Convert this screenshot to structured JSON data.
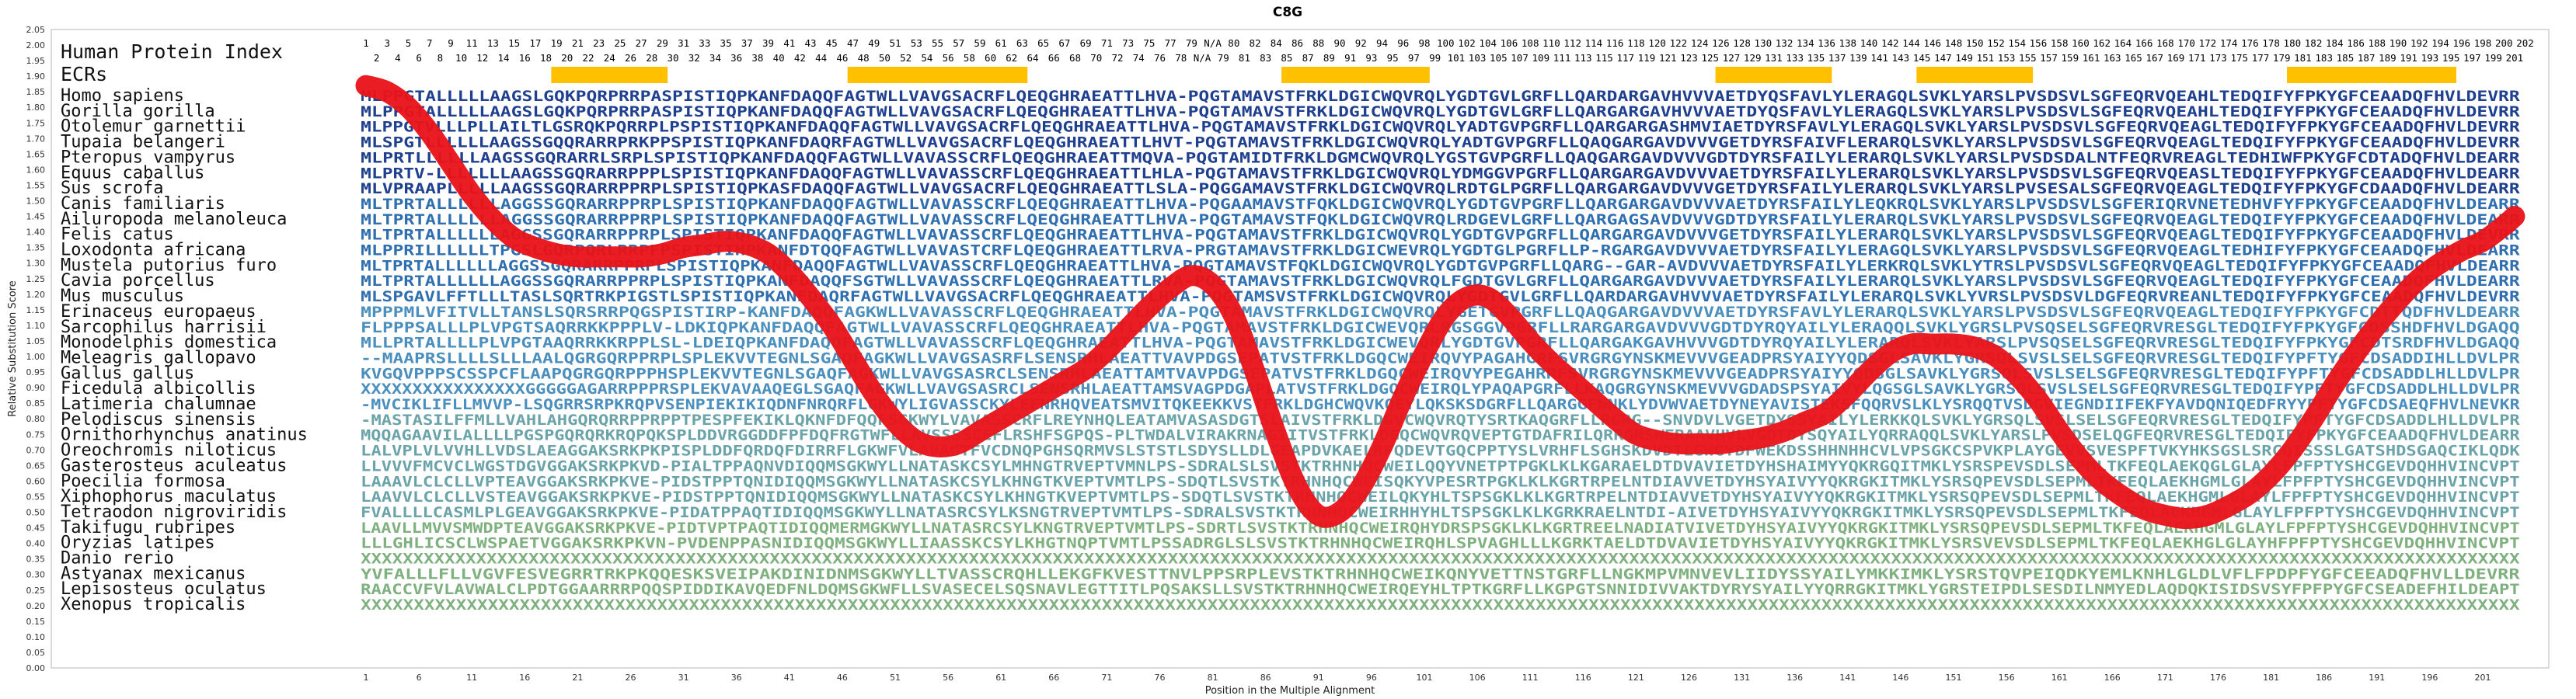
{
  "chart_data": {
    "type": "line",
    "title": "C8G",
    "xlabel": "Position in the Multiple Alignment",
    "ylabel": "Relative Substitution Score",
    "ylim": [
      0,
      2.05
    ],
    "xlim": [
      1,
      204
    ],
    "y_ticks": [
      "0.00",
      "0.05",
      "0.10",
      "0.15",
      "0.20",
      "0.25",
      "0.30",
      "0.35",
      "0.40",
      "0.45",
      "0.50",
      "0.55",
      "0.60",
      "0.65",
      "0.70",
      "0.75",
      "0.80",
      "0.85",
      "0.90",
      "0.95",
      "1.00",
      "1.05",
      "1.10",
      "1.15",
      "1.20",
      "1.25",
      "1.30",
      "1.35",
      "1.40",
      "1.45",
      "1.50",
      "1.55",
      "1.60",
      "1.65",
      "1.70",
      "1.75",
      "1.80",
      "1.85",
      "1.90",
      "1.95",
      "2.00",
      "2.05"
    ],
    "x_ticks": [
      1,
      6,
      11,
      16,
      21,
      26,
      31,
      36,
      41,
      46,
      51,
      56,
      61,
      66,
      71,
      76,
      81,
      86,
      91,
      96,
      101,
      106,
      111,
      116,
      121,
      126,
      131,
      136,
      141,
      146,
      151,
      156,
      161,
      166,
      171,
      176,
      181,
      186,
      191,
      196,
      201
    ],
    "human_index_label": "Human Protein Index",
    "human_index_top": [
      "1",
      "3",
      "5",
      "7",
      "9",
      "11",
      "13",
      "15",
      "17",
      "19",
      "21",
      "23",
      "25",
      "27",
      "29",
      "31",
      "33",
      "35",
      "37",
      "39",
      "41",
      "43",
      "45",
      "47",
      "49",
      "51",
      "53",
      "55",
      "57",
      "59",
      "61",
      "63",
      "65",
      "67",
      "69",
      "71",
      "73",
      "75",
      "77",
      "79",
      "N/A",
      "80",
      "82",
      "84",
      "86",
      "88",
      "90",
      "92",
      "94",
      "96",
      "98",
      "100",
      "102",
      "104",
      "106",
      "108",
      "110",
      "112",
      "114",
      "116",
      "118",
      "120",
      "122",
      "124",
      "126",
      "128",
      "130",
      "132",
      "134",
      "136",
      "138",
      "140",
      "142",
      "144",
      "146",
      "148",
      "150",
      "152",
      "154",
      "156",
      "158",
      "160",
      "162",
      "164",
      "166",
      "168",
      "170",
      "172",
      "174",
      "176",
      "178",
      "180",
      "182",
      "184",
      "186",
      "188",
      "190",
      "192",
      "194",
      "196",
      "198",
      "200",
      "202"
    ],
    "human_index_bottom": [
      "2",
      "4",
      "6",
      "8",
      "10",
      "12",
      "14",
      "16",
      "18",
      "20",
      "22",
      "24",
      "26",
      "28",
      "30",
      "32",
      "34",
      "36",
      "38",
      "40",
      "42",
      "44",
      "46",
      "48",
      "50",
      "52",
      "54",
      "56",
      "58",
      "60",
      "62",
      "64",
      "66",
      "68",
      "70",
      "72",
      "74",
      "76",
      "78",
      "N/A",
      "79",
      "81",
      "83",
      "85",
      "87",
      "89",
      "91",
      "93",
      "95",
      "97",
      "99",
      "101",
      "103",
      "105",
      "107",
      "109",
      "111",
      "113",
      "115",
      "117",
      "119",
      "121",
      "123",
      "125",
      "127",
      "129",
      "131",
      "133",
      "135",
      "137",
      "139",
      "141",
      "143",
      "145",
      "147",
      "149",
      "151",
      "153",
      "155",
      "157",
      "159",
      "161",
      "163",
      "165",
      "167",
      "169",
      "171",
      "173",
      "175",
      "177",
      "179",
      "181",
      "183",
      "185",
      "187",
      "189",
      "191",
      "193",
      "195",
      "197",
      "199",
      "201"
    ],
    "ecr_label": "ECRs",
    "ecr_ranges": [
      [
        19,
        29
      ],
      [
        47,
        63
      ],
      [
        88,
        101
      ],
      [
        129,
        139
      ],
      [
        148,
        158
      ],
      [
        183,
        198
      ]
    ],
    "ecr_color": "#ffc000",
    "line_color": "#e8141a",
    "species": [
      {
        "name": "Homo sapiens",
        "seq": "MLPPGTALLLLLAAGSLGQKPQRPRRPASPISTIQPKANFDAQQFAGTWLLVAVGSACRFLQEQGHRAEATTLHVA-PQGTAMAVSTFRKLDGICWQVRQLYGDTGVLGRFLLQARDARGAVHVVVAETDYQSFAVLYLERAGQLSVKLYARSLPVSDSVLSGFEQRVQEAHLTEDQIFYFPKYGFCEAADQFHVLDEVRR"
      },
      {
        "name": "Gorilla gorilla",
        "seq": "MLPPGTALLLLLAAGSLGQKPQRPRRPASPISTIQPKANFDAQQFAGTWLLVAVGSACRFLQEQGHRAEATTLHVA-PQGTAMAVSTFRKLDGICWQVRQLYGDTGVLGRFLLQARGARGAVHVVVAETDYQSFAVLYLERAGQLSVKLYARSLPVSDSVLSGFEQRVQEAHLTEDQIFYFPKYGFCEAADQFHVLDEVRR"
      },
      {
        "name": "Otolemur garnettii",
        "seq": "MLPPGTVLLLPLLAILTLGSRQKPQRRPLPSPISTIQPKANFDAQQFAGTWLLVAVGSACRFLQEQGHRAEATTLHVA-PQGTAMAVSTFRKLDGICWQVRQLYADTGVPGRFLLQARGARGASHMVIAETDYRSFAVLYLERAGQLSVKLYARSLPVSDSVLSGFEQRVQEAGLTEDQIFYFPKYGFCEAADQFHVLDEVRR"
      },
      {
        "name": "Tupaia belangeri",
        "seq": "MLSPGTLLLLLLAAGSSGQQRARRPRKPPSPISTIQPKANFDAQRFAGTWLLVAVGSACRFLQEQGHRAEATTLHVT-PQGTAMAVSTFRKLDGICWQVRQLYADTGVPGRFLLQAQGARGAVDVVVGETDYRSFAIVFLERARQLSVKLYARSLPVSDSVLSGFEQRVQEAGLTEDQIFYFPKYGFCEAADQFHVLDEVRR"
      },
      {
        "name": "Pteropus vampyrus",
        "seq": "MLPRTLLLLLLAAGSSGQRARRLSRPLSPISTIQPKANFDAQQFAGTWLLVAVASSCRFLQEQGHRAEATTMQVA-PQGTAMIDTFRKLDGMCWQVRQLYGSTGVPGRFLLQAQGARGAVDVVVGDTDYRSFAILYLERARQLSVKLYARSLPVSDSDALNTFEQRVREAGLTEDHIWFPKYGFCDTADQFHVLDEARR"
      },
      {
        "name": "Equus caballus",
        "seq": "MLPRTV-LLLLLLLAAGSSGQRARRPPPLSPISTIQPKANFDAQQFAGTWLLVAVASSCRFLQEQGHRAEATTLHLA-PQGTAMAVSTFRKLDGICWQVRQLYDMGGVPGRFLLQARGARGAVDVVVAETDYRSFAILYLERARQLSVKLYARSLPVSDSVLSGFEQRVQEASLTEDQIFYFPKYGFCEAADQFHVLDEARR"
      },
      {
        "name": "Sus scrofa",
        "seq": "MLVPRAAPLLLLLAAGSSGQRARRPPRPLSPISTIQPKASFDAQQFAGTWLLVAVGSACRFLQEQGHRAEATTLSLA-PQGGAMAVSTFRKLDGICWQVRQLRDTGLPGRFLLQARGARGAVDVVVGETDYRSFAILYLERARQLSVKLYARSLPVSESALSGFEQRVQEAGLTEDQIFYFPKYGFCDAADQFHVLDEARR"
      },
      {
        "name": "Canis familiaris",
        "seq": "MLTPRTALLLLLLAGGSSGQRARRPPRPLSPISTIQPKANFDAQQFAGTWLLVAVASSCRFLQEQGHRAEATTLHVA-PQGAAMAVSTFQKLDGICWQVRQLYGDTGVPGRFLLQARGARGAVDVVVAETDYRSFAILYLEQKRQLSVKLYARSLPVSDSVLSGFERIQRVNETEDHVFYFPKYGFCEAADQFHVLDEARR"
      },
      {
        "name": "Ailuropoda melanoleuca",
        "seq": "MLTPRTALLLLLLAGGSSGQRARRPPRPLSPISTIQPKANFDAQQFAGTWLLVAVASSCRFLQEQGHRAEATTLHVA-PQGTAMAVSTFQKLDGICWQVRQLRDGEVLGRFLLQARGAGSAVDVVVGDTDYRSFAILYLERARQLSVKLYARSLPVSDSVLSGFEQRVQEAGLTEDQIFYFPKYGFCEAADQFHVLDEARR"
      },
      {
        "name": "Felis catus",
        "seq": "MLTPRTALLLLLLAGGSSGQRARRPPRPLSPISTIQPKANFDAQQFAGTWLLVAVASSCRFLQEQGHRAEATTLHVA-PQGTAMAVSTFRKLDGICWQVRQLYGDTGVPGRFLLQARGARGAVDVVVGETDYRSFAILYLERARQLSVKLYARSLPVSDSVLSGFEQRVQEAGLTEDQIFYFPKYGFCEAADQFHVLDEVRR"
      },
      {
        "name": "Loxodonta africana",
        "seq": "MLPPRILLLLLLTPGSLGQRPQRLRRPFPSPISTIHPKANFDTQQFAGTWLLVAVASTCRFLQEQGHRAEATTLRVA-PRGTAMAVSTFRKLDGICWEVRQLYGDTGLPGRFLLP-RGARGAVDVVVAETDYRSFAILYLERAGQLSVKLYARSLPVSDSVLSGFEQRVQEAGLTEDHIFYFPKYGFCEAADQFHVLDEARR"
      },
      {
        "name": "Mustela putorius furo",
        "seq": "MLTPRTALLLLLLAGGSSGQRARRPPRPLSPISTIQPKANFDAQQFAGTWLLVAVASSCRFLQEQGHRAEATTLHVA-PQGTAMAVSTFQKLDGICWQVRQLYGDTGVPGRFLLQARG--GAR-AVDVVVAETDYRSFAILYLERKRQLSVKLYTRSLPVSDSVLSGFEQRVQEAGLTEDQIFYFPKYGFCEAADQFHVLDEARR"
      },
      {
        "name": "Cavia porcellus",
        "seq": "MLTPRTALLLLLLAGGSSGQRARRPPRPLSPISTIQPKANFDAQQFSGTWLLVAVASSCRFLQEQGHRAEATTLRVA-PQGTAMAVSTFRKLDGICWQVRQLFGDTGVLGRFLLQARGARGAVDVVVAETDYRSFAILYLERARQLSVKLYARSLPVSDSVLSGFEQRVQEAGLTEDQIFYFPKYGFCEAADQFHVLDEARR"
      },
      {
        "name": "Mus musculus",
        "seq": "MLSPGAVLFFTLLLTASLSQRTRKPIGSTLSPISTIQPKANFDAQRFAGTWLLVAVGSACRFLQEQGHRAEATTLHVA-PQGTAMSVSTFRKLDGICWQVRQLYGDTGVLGRFLLQARDARGAVHVVVAETDYRSFAILYLERARQLSVKLYVRSLPVSDSVLDGFEQRVREANLTEDQIFYFPKYGFCEAADQFHVLDEVRR"
      },
      {
        "name": "Erinaceus europaeus",
        "seq": "MPPPMLVFITVLLTANSLSQRSRRPQGSPISTIRP-KANFDAQQFAGKWLLVAVASSCRFLQEQGHRAEATTLHVA-PQGTAMAVSTFRKLDGICWQVRQLYGETGVPGRFLLQAQGARGAVDVVVAETDYRSFAVLYLERARQLSVKLYARSLPVSDSVLSGFEQRVQEAGLTEDQIFYFPKYGFCDTTQDFHVLDEARR"
      },
      {
        "name": "Sarcophilus harrisii",
        "seq": "FLPPPSALLLPLVPGTSAQRRKKPPPLV-LDKIQPKANFDAQQFAGTWLLVAVASSCRFLQEQGHRAEATTLHVA-PQGTAMAVSTFRKLDGICWEVQRLRGSGGVPGRFLLRARGARGAVDVVVGDTDYRQYAILYLERAQQLSVKLYGRSLPVSQSELSGFEQRVRESGLTEDQIFYFPKYGFCDSSHDFHVLDGAQQ"
      },
      {
        "name": "Monodelphis domestica",
        "seq": "MLLPRTALLLLPLVPGTAAQRRKKRPPLSL-LDEIQPKANFDAQQFAGTWLLVAVASSCRFLQEQGHRAEATTLHVA-PQGTAMAVSTFRKLDGICWEVQRLYGDTGVPGRFLLQARGAKGAVHVVVGDTDYRQYAILYLERARQLSVKLYARSLPVSQSELSGFEQRVRESGLTEDQIFYFPKYGFCDTSRDFHVLDGAQQ"
      },
      {
        "name": "Meleagris gallopavo",
        "seq": "--MAAPRSLLLLSLLLAALQGRGQRPPRPLSPLEKVVTEGNLSGAQFAGKWLLVAVGSASRFLSENSRHLAEATTVAVPDGSEPATVSTFRKLDGQCWEIRQVYPAGAHGRFSVRGRGYNSKMEVVVGEADPRSYAIYYQDSGLSAVKLYGRSQLSVSLSELSGFEQRVRESGLTEDQIFYPFTYGFCDSADDIHLLDVLPR"
      },
      {
        "name": "Gallus gallus",
        "seq": "KVGQVPPPSCSSPCFLAAPQGRGQRPPPHSPLEKVVTEGNLSGAQFAGKWLLVAVGSASRCLSENSRHLAEATTAMTVAVPDGSEPATVSTFRKLDGQCWEIRQVYPEGAHRRFSVRGRGYNSKMEVVVGEADPRSYAIYYQDSGLSAVKLYGRSQLSVSLSELSGFEQRVRESGLTEDQIFYPFTYGFCDSADDLHLLDVLPR"
      },
      {
        "name": "Ficedula albicollis",
        "seq": "XXXXXXXXXXXXXXXXGGGGGAGARRPPPRSPLEKVAVAAQEGLSGAQFAGKWLLVAVGSASRCLSENSRHLAEATTAMSVAGPDGAPLATVSTFRKLDGQCWEIRQLYPAQAPGRFLLKAQGRGYNSKMEVVVGDADSPSYAIVYLQGSGLSAVKLYGRSQLSVSLSELSGFEQRVRESGLTEDQIFYPFTYGFCDSADDLHLLDVLPR"
      },
      {
        "name": "Latimeria chalumnae",
        "seq": "-MVCIKLIFLLMVVP-LSQGRRSRPKRQPVSENPIEKIKIQDNFNRQRFLGKWYLIGVASSCKYLEENRHQVEATSMVITQKEEKKVSTFRKLDGHCWQVKQEYLQKSKSDGRFLLQARGGFNNKLYDVWVAETDYNEYAVISTEKSFQQRVSLKLYSRQQTVSDGVIEGNDIIFEKFYAVDQNIQEDFRYYPFTYGFCDSAEQFHVLNEVKR"
      },
      {
        "name": "Pelodiscus sinensis",
        "seq": "-MASTASILFFMLLVAHLAHGQRQRRPPRPPTPESPFEKIKLQKNFDFQQFSGKWYLVAVASSCRFLREYNHQLEATAMVASASDGTSLAIVSTFRKLDGVCWQVRQTYSRTKAQGRFLLRGRG--SNVDVLVGETDYSSYAILYLERKKQLSVKLYGRSQLSVSLSELSGFEQRVRESGLTEDQIFYPFTYGFCDSADDLHLLDVLPR"
      },
      {
        "name": "Ornithorhynchus anatinus",
        "seq": "MQQAGAAVILALLLLPGSPGQRQRKRQPQKSPLDDVRGGDDFPFDQFRGTWFLLAVSSSSCEFLRSHFSGPQS-PLTWDALVIRAKRNAGIITVSTFRKLDGQCWQVRQVEPTGTDAFRILQRRGRSWERAAVHVLVGDTDYSQYAILYQRRAQQLSVKLYARSLPVSDSELQGFEQRVRESGLTEDQIFYFPKYGFCEAADQFHVLDEARR"
      },
      {
        "name": "Oreochromis niloticus",
        "seq": "LALVPLVLVVHLLVDSLAEAGGAKSRKPKPISPLDDFQRDQFDIRRFLGKWFVLAVAGTFVCDNQPGHSQRMVSLSTSTLSDYSLLDLGEAPDVKAELRFQDEVTGQCPPTYSLVRHFLSGHSKDVDTLGWGYDFWEKDSSHHNHHCVLVPSGKCSPVKPLAYGEVVSVESPFTVKYHKSGSLSRCQISSSLGATSHDSGAQCIKLQDK"
      },
      {
        "name": "Gasterosteus aculeatus",
        "seq": "LLVVVFMCVCLWGSTDGVGGAKSRKPKVD-PIALTPPAQNVDIQQMSGKWYLLNATASKCSYLMHNGTRVEPTVMNLPS-SDRALSLSVSTKTRHNHQCWEILQQYVNETPTPGKLKLKGARAELDTDVAVIETDYHSHAIMYYQKRGQITMKLYSRSPEVSDLSEPMLTKFEQLAEKQGLGLAYLFPFPTYSHCGEVDQHHVINCVPT"
      },
      {
        "name": "Poecilia formosa",
        "seq": "LAAAVLCLCLLVPTEAVGGAKSRKPKVE-PIDSTPPTQNIDIQQMSGKWYLLNATASKCSYLKHNGTKVEPTVMTLPS-SDQTLSVSTKTRHNHQCWEISQKYVPESRTPGKLKLKGRTRPELNTDIAVVETDYHSYAIVYYQKRGKITMKLYSRSQPEVSDLSEPMLTKFEQLAEKHGMLGLAYLFPFPTYSHCGEVDQHHVINCVPT"
      },
      {
        "name": "Xiphophorus maculatus",
        "seq": "LAAVVLCLCLLVSTEAVGGAKSRKPKVE-PIDSTPPTQNIDIQQMSGKWYLLNATASKCSYLKHNGTKVEPTVMTLPS-SDQTLSVSTKTRHNHQCWEILQKYHLTSPSGKLKLKGRTRPELNTDIAVVETDYHSYAIVYYQKRGKITMKLYSRSQPEVSDLSEPMLTKFEQLAEKHGMLGLAYLFPFPTYSHCGEVDQHHVINCVPT"
      },
      {
        "name": "Tetraodon nigroviridis",
        "seq": "FVALLLLCASMLPLGEAVGGAKSRKPKVE-PIDATPPAQTIDIQQMSGKWYLLNATASRCSYLKSNGTRVEPTVMTLPS-SDRALSVSTKTRHNHQCWEIRHHYHLTSPSGKLKLKGRKRAELNTDI-AIVETDYHSYAIVYYQKRGKITMKLYSRSQPEVSDLSEPMLTKFEQLAEKHGMLGLAYLFPFPTYSHCGEVDQHHVINCVPT"
      },
      {
        "name": "Takifugu rubripes",
        "seq": "LAAVLLMVVSMWDPTEAVGGAKSRKPKVE-PIDTVPTPAQTIDIQQMERMGKWYLLNATASRCSYLKNGTRVEPTVMTLPS-SDRTLSVSTKTRHNHQCWEIRQHYDRSPSGKLKLKGRTREELNADIATVIVETDYHSYAIVYYQKRGKITMKLYSRSQPEVSDLSEPMLTKFEQLAEKHGMLGLAYLFPFPTYSHCGEVDQHHVINCVPT"
      },
      {
        "name": "Oryzias latipes",
        "seq": "LLLGHLICSCLWSPAETVGGAKSRKPKVN-PVDENPPASNIDIQQMSGKWYLLIAASSKCSYLKHGTNQPTVMTLPSSADRGLSLSVSTKTRHNHQCWEIRQHLSPVAGHLLLKGRKTAELDTDVAVIETDYHSYAIVYYQKRGKITMKLYSRSVEVSDLSEPMLTKFEQLAEKHGLGLAYHFPFPTYSHCGEVDQHHVINCVPT"
      },
      {
        "name": "Danio rerio",
        "seq": "XXXXXXXXXXXXXXXXXXXXXXXXXXXXXXXXXXXXXXXXXXXXXXXXXXXXXXXXXXXXXXXXXXXXXXXXXXXXXXXXXXXXXXXXXXXXXXXXXXXXXXXXXXXXXXXXXXXXXXXXXXXXXXXXXXXXXXXXXXXXXXXXXXXXXXXXXXXXXXXXXXXXXXXXXXXXXXXXXXXXXXXXXXXXXXXXXXXXXXXXXXXXXX"
      },
      {
        "name": "Astyanax mexicanus",
        "seq": "YVFALLLFLLVGVFESVEGRRTRKPKQQESKSVEIPAKDINIDNMSGKWYLLTVASSCRQHLLEKGFKVESTTNVLPPSRPLEVSTKTRHNHQCWEIKQNYVETTNSTGRFLLNGKMPVMNVEVLIIDYSSYAILYMKKIMKLYSRSTQVPEIQDKYEMLKNHLGLDLVFLFPDPFYGFCEEADQFHVLLDEVRR"
      },
      {
        "name": "Lepisosteus oculatus",
        "seq": "RAACCVFVLAVWALCLPDTGGAARRRPQQSPIDDIKAVQEDFNLDQMSGKWFLLSVASECELSQSNAVLEGTTITLPQSAKSLLSVSTKTRHNHQCWEIRQEYHLTPTKGRFLLKGPGTSNNIDIVVAKTDYRYSYAILYYQRRGKITMKLYGRSTEIPDLSESDILNMYEDLAQDQKISIDSVSYFPFPYGFCSEADEFHILDEAPT"
      },
      {
        "name": "Xenopus tropicalis",
        "seq": "XXXXXXXXXXXXXXXXXXXXXXXXXXXXXXXXXXXXXXXXXXXXXXXXXXXXXXXXXXXXXXXXXXXXXXXXXXXXXXXXXXXXXXXXXXXXXXXXXXXXXXXXXXXXXXXXXXXXXXXXXXXXXXXXXXXXXXXXXXXXXXXXXXXXXXXXXXXXXXXXXXXXXXXXXXXXXXXXXXXXXXXXXXXXXXXXXXXXXXXXXXXX"
      }
    ],
    "series": [
      {
        "x": [
          1,
          3,
          5,
          7,
          9,
          11,
          13,
          15,
          17,
          19,
          21,
          23,
          25,
          27,
          29,
          31,
          33,
          35,
          37,
          39,
          41,
          43,
          45,
          47,
          49,
          51,
          53,
          55,
          57,
          59,
          61,
          63,
          65,
          67,
          69,
          71,
          73,
          75,
          77,
          79,
          81,
          83,
          85,
          87,
          89,
          91,
          93,
          95,
          97,
          99,
          101,
          103,
          105,
          107,
          109,
          111,
          113,
          115,
          117,
          119,
          121,
          123,
          125,
          127,
          129,
          131,
          133,
          135,
          137,
          139,
          141,
          143,
          145,
          147,
          149,
          151,
          153,
          155,
          157,
          159,
          161,
          163,
          165,
          167,
          169,
          171,
          173,
          175,
          177,
          179,
          181,
          183,
          185,
          187,
          189,
          191,
          193,
          195,
          197,
          199,
          201,
          203,
          204
        ],
        "y": [
          1.87,
          1.85,
          1.8,
          1.72,
          1.62,
          1.52,
          1.44,
          1.38,
          1.35,
          1.33,
          1.32,
          1.32,
          1.32,
          1.32,
          1.33,
          1.35,
          1.36,
          1.37,
          1.36,
          1.33,
          1.27,
          1.19,
          1.1,
          0.99,
          0.88,
          0.79,
          0.73,
          0.71,
          0.72,
          0.76,
          0.8,
          0.84,
          0.88,
          0.92,
          0.96,
          1.02,
          1.09,
          1.16,
          1.22,
          1.26,
          1.23,
          1.13,
          0.95,
          0.75,
          0.58,
          0.49,
          0.5,
          0.58,
          0.71,
          0.87,
          1.01,
          1.13,
          1.19,
          1.19,
          1.13,
          1.05,
          0.98,
          0.92,
          0.86,
          0.8,
          0.75,
          0.73,
          0.72,
          0.72,
          0.72,
          0.73,
          0.74,
          0.76,
          0.79,
          0.82,
          0.88,
          0.95,
          1.01,
          1.04,
          1.04,
          1.04,
          1.03,
          1.0,
          0.94,
          0.86,
          0.76,
          0.67,
          0.6,
          0.55,
          0.51,
          0.49,
          0.48,
          0.49,
          0.52,
          0.56,
          0.62,
          0.7,
          0.8,
          0.91,
          1.01,
          1.1,
          1.18,
          1.25,
          1.3,
          1.34,
          1.37,
          1.42,
          1.45
        ]
      }
    ]
  }
}
